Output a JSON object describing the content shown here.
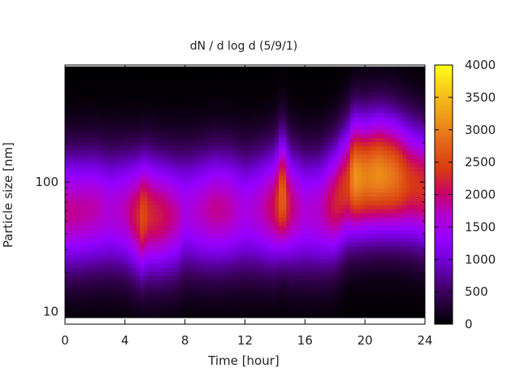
{
  "chart_data": {
    "type": "heatmap",
    "title": "dN / d log d (5/9/1)",
    "xlabel": "Time [hour]",
    "ylabel": "Particle size [nm]",
    "xlim": [
      0,
      24
    ],
    "x_ticks": [
      0,
      4,
      8,
      12,
      16,
      20,
      24
    ],
    "x_tick_labels": [
      "0",
      "4",
      "8",
      "12",
      "16",
      "20",
      "24"
    ],
    "y_scale": "log",
    "ylim": [
      8,
      800
    ],
    "y_ticks": [
      10,
      100
    ],
    "y_tick_labels": [
      "10",
      "100"
    ],
    "colorbar": {
      "min": 0,
      "max": 4000,
      "ticks": [
        0,
        500,
        1000,
        1500,
        2000,
        2500,
        3000,
        3500,
        4000
      ],
      "tick_labels": [
        "0",
        "500",
        "1000",
        "1500",
        "2000",
        "2500",
        "3000",
        "3500",
        "4000"
      ],
      "palette": "black-purple-red-orange-yellow"
    },
    "data_gap": {
      "x_range": [
        6.9,
        7.1
      ]
    },
    "modal_diameter_nm": 60,
    "time_hours": [
      0,
      1,
      2,
      3,
      4,
      5,
      5.2,
      5.5,
      6,
      6.5,
      7.5,
      8,
      9,
      10,
      11,
      12,
      13,
      14,
      14.5,
      15,
      16,
      17,
      18,
      19,
      19.2,
      20,
      21,
      22,
      23,
      24
    ],
    "peak_concentration": [
      1900,
      1850,
      1800,
      1600,
      1750,
      2300,
      2700,
      2300,
      2200,
      2100,
      1800,
      1500,
      1700,
      1900,
      1800,
      1500,
      1700,
      2100,
      2900,
      2000,
      1600,
      1700,
      2200,
      2500,
      3200,
      3000,
      3100,
      2900,
      2400,
      2300
    ],
    "peak_diameter_nm": [
      60,
      60,
      62,
      60,
      60,
      55,
      55,
      58,
      55,
      55,
      55,
      60,
      60,
      62,
      62,
      60,
      62,
      65,
      80,
      65,
      60,
      60,
      70,
      100,
      110,
      110,
      115,
      110,
      100,
      90
    ]
  }
}
